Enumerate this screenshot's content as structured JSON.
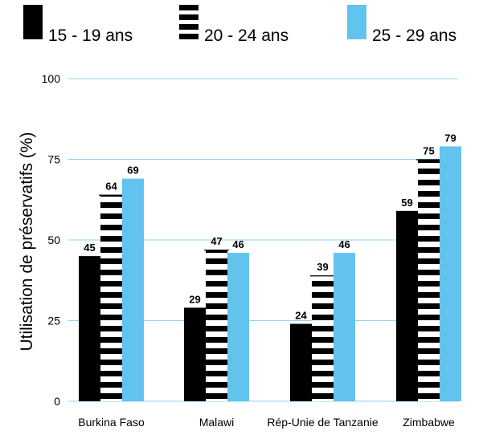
{
  "chart_data": {
    "type": "bar",
    "title": "",
    "xlabel": "",
    "ylabel": "Utilisation de préservatifs (%)",
    "ylim": [
      0,
      100
    ],
    "yticks": [
      "0",
      "25",
      "50",
      "75",
      "100"
    ],
    "grid": true,
    "legend_position": "top",
    "categories": [
      "Burkina Faso",
      "Malawi",
      "Rép-Unie de Tanzanie",
      "Zimbabwe"
    ],
    "series": [
      {
        "name": "15 - 19 ans",
        "values": [
          45,
          29,
          24,
          59
        ],
        "color": "#000000",
        "pattern": "solid"
      },
      {
        "name": "20 - 24 ans",
        "values": [
          64,
          47,
          39,
          75
        ],
        "color": "#000000",
        "pattern": "horizontal-stripes"
      },
      {
        "name": "25 - 29 ans",
        "values": [
          69,
          46,
          46,
          79
        ],
        "color": "#62c4ee",
        "pattern": "solid"
      }
    ],
    "colors": {
      "gridline": "#8ed3f3",
      "axis_text": "#000000"
    }
  }
}
